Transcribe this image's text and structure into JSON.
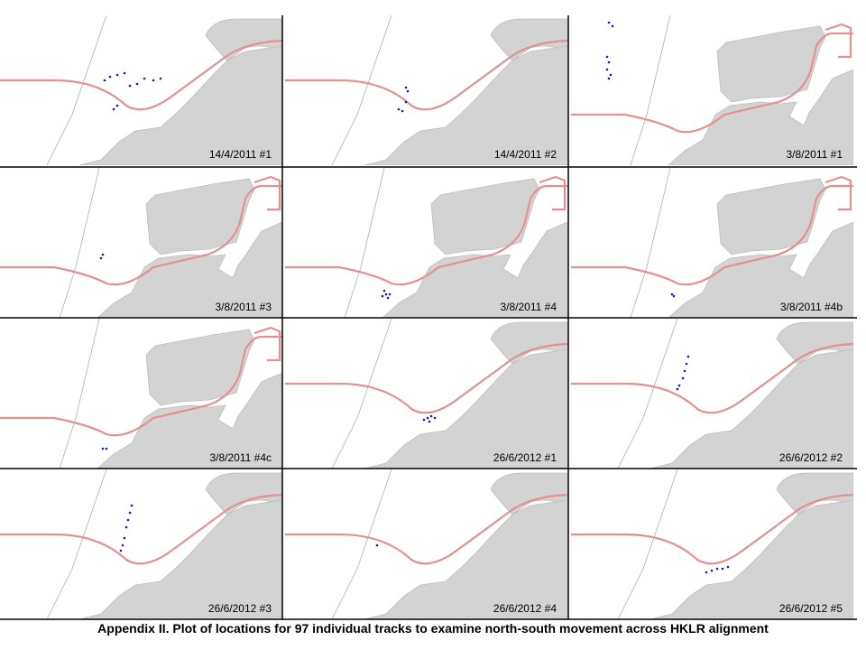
{
  "panels": [
    {
      "label": "14/4/2011 #1"
    },
    {
      "label": "14/4/2011 #2"
    },
    {
      "label": "3/8/2011 #1"
    },
    {
      "label": "3/8/2011 #3"
    },
    {
      "label": "3/8/2011 #4"
    },
    {
      "label": "3/8/2011 #4b"
    },
    {
      "label": "3/8/2011 #4c"
    },
    {
      "label": "26/6/2012 #1"
    },
    {
      "label": "26/6/2012 #2"
    },
    {
      "label": "26/6/2012 #3"
    },
    {
      "label": "26/6/2012 #4"
    },
    {
      "label": "26/6/2012 #5"
    }
  ],
  "caption": "Appendix II. Plot of locations for 97 individual tracks to examine north-south movement across HKLR alignment"
}
